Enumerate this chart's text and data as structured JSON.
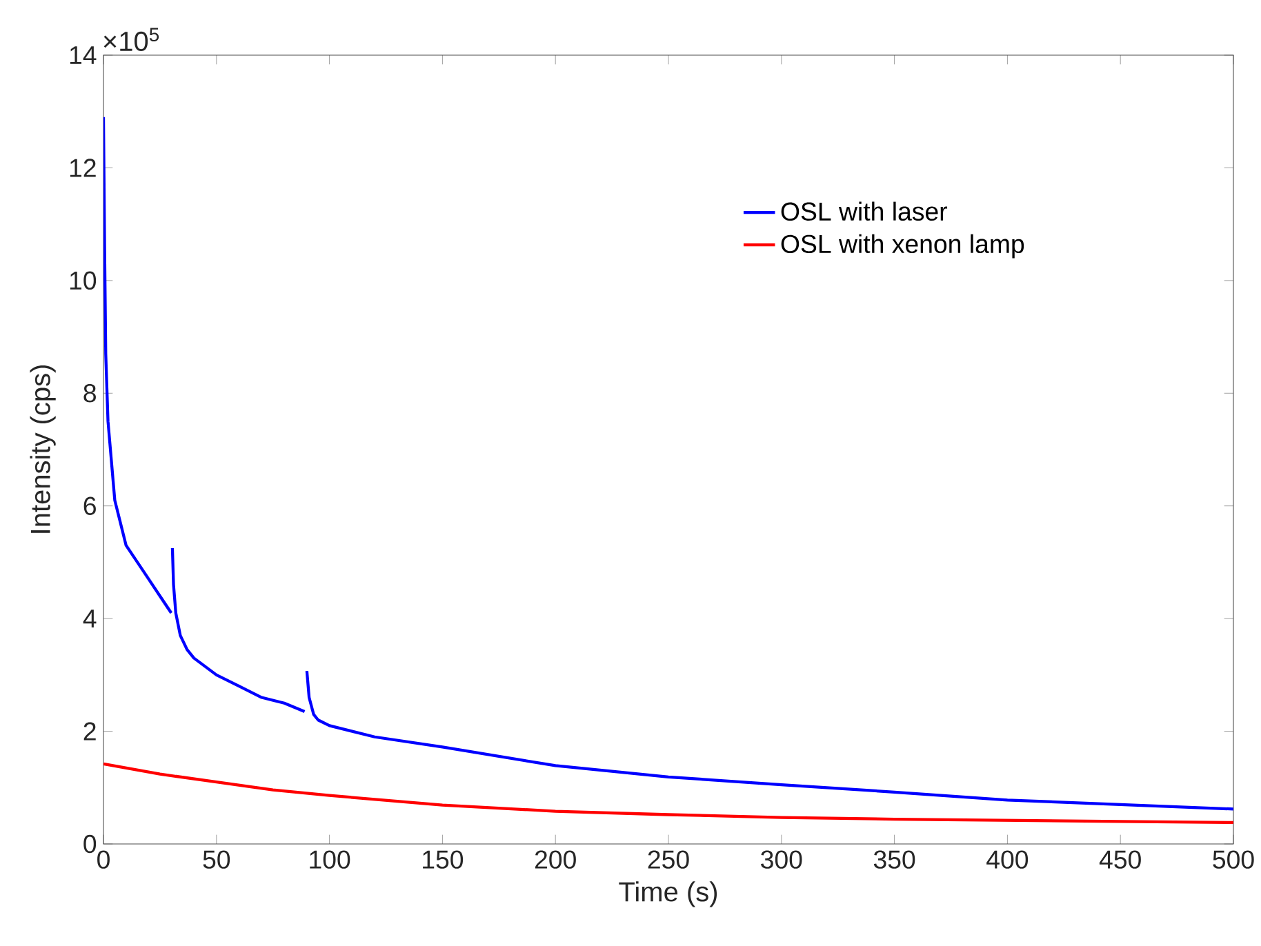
{
  "chart_data": {
    "type": "line",
    "xlabel": "Time (s)",
    "ylabel": "Intensity (cps)",
    "annotations": [
      "×10$^{5}$"
    ],
    "xlim": [
      0,
      500
    ],
    "xticks": [
      0,
      50,
      100,
      150,
      200,
      250,
      300,
      350,
      400,
      450,
      500
    ],
    "ylim": [
      0,
      14
    ],
    "yticks": [
      0,
      2,
      4,
      6,
      8,
      10,
      12,
      14
    ],
    "grid": false,
    "legend": "top right",
    "marker": "none",
    "line_style": "solid",
    "series": [
      {
        "name": "OSL with laser",
        "color": "#0000ff",
        "x": [
          0,
          0.5,
          1,
          2,
          5,
          10,
          15,
          20,
          25,
          30,
          30.3,
          30.5,
          31,
          32,
          34,
          37,
          40,
          50,
          60,
          70,
          80,
          89,
          89.5,
          90,
          91,
          93,
          95,
          100,
          120,
          150,
          200,
          250,
          300,
          350,
          400,
          450,
          500
        ],
        "values": [
          12.9,
          10.6,
          8.7,
          7.5,
          6.1,
          5.3,
          5.0,
          4.7,
          4.4,
          4.1,
          null,
          5.25,
          4.6,
          4.1,
          3.7,
          3.45,
          3.3,
          3.0,
          2.8,
          2.6,
          2.5,
          2.35,
          null,
          3.07,
          2.6,
          2.3,
          2.2,
          2.1,
          1.9,
          1.72,
          1.39,
          1.19,
          1.05,
          0.92,
          0.78,
          0.7,
          0.62
        ]
      },
      {
        "name": "OSL with xenon lamp",
        "color": "#ff0000",
        "x": [
          0,
          25,
          50,
          75,
          100,
          150,
          200,
          250,
          300,
          350,
          400,
          450,
          500
        ],
        "values": [
          1.42,
          1.24,
          1.1,
          0.96,
          0.86,
          0.69,
          0.58,
          0.52,
          0.47,
          0.44,
          0.42,
          0.4,
          0.38
        ]
      }
    ]
  }
}
